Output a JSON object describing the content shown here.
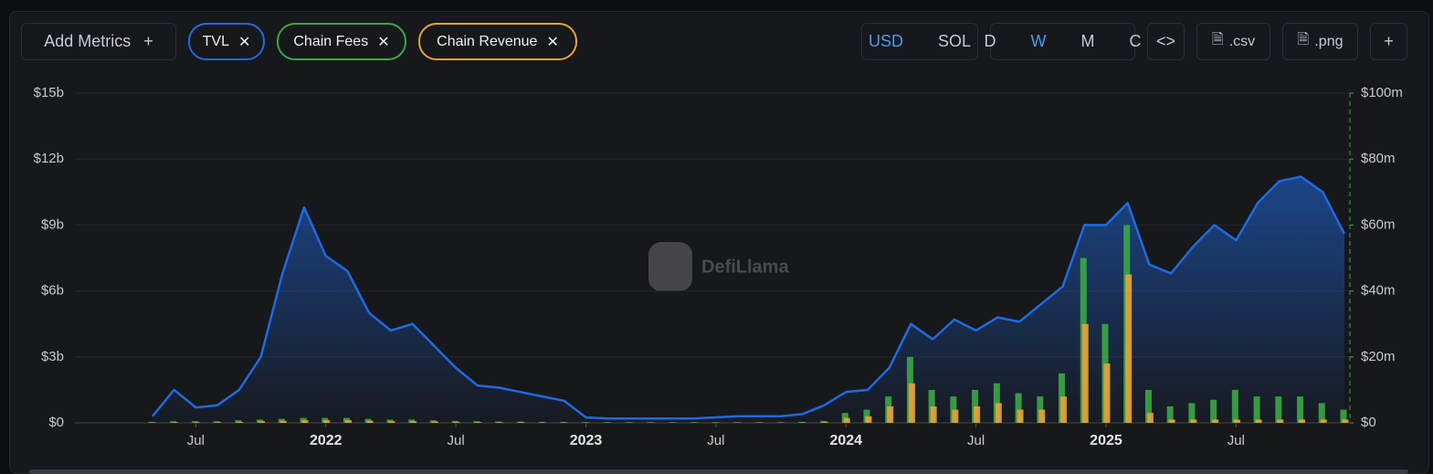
{
  "toolbar": {
    "add_metrics": "Add Metrics",
    "currencies": [
      "USD",
      "SOL"
    ],
    "selected_currency": "USD",
    "intervals": [
      "D",
      "W",
      "M",
      "C"
    ],
    "selected_interval": "W",
    "exports": [
      ".csv",
      ".png"
    ]
  },
  "chart_data": {
    "type": "line",
    "watermark": "DefiLlama",
    "x": [
      "2021-05",
      "2021-06",
      "2021-07",
      "2021-08",
      "2021-09",
      "2021-10",
      "2021-11",
      "2021-12",
      "2022-01",
      "2022-02",
      "2022-03",
      "2022-04",
      "2022-05",
      "2022-06",
      "2022-07",
      "2022-08",
      "2022-09",
      "2022-10",
      "2022-11",
      "2022-12",
      "2023-01",
      "2023-02",
      "2023-03",
      "2023-04",
      "2023-05",
      "2023-06",
      "2023-07",
      "2023-08",
      "2023-09",
      "2023-10",
      "2023-11",
      "2023-12",
      "2024-01",
      "2024-02",
      "2024-03",
      "2024-04",
      "2024-05",
      "2024-06",
      "2024-07",
      "2024-08",
      "2024-09",
      "2024-10",
      "2024-11",
      "2024-12",
      "2025-01",
      "2025-02",
      "2025-03",
      "2025-04",
      "2025-05",
      "2025-06",
      "2025-07",
      "2025-08",
      "2025-09",
      "2025-10",
      "2025-11",
      "2025-12"
    ],
    "xlim": [
      "2021-01",
      "2025-12"
    ],
    "xticks": [
      {
        "value": "2021-07",
        "label": "Jul"
      },
      {
        "value": "2022-01",
        "label": "2022"
      },
      {
        "value": "2022-07",
        "label": "Jul"
      },
      {
        "value": "2023-01",
        "label": "2023"
      },
      {
        "value": "2023-07",
        "label": "Jul"
      },
      {
        "value": "2024-01",
        "label": "2024"
      },
      {
        "value": "2024-07",
        "label": "Jul"
      },
      {
        "value": "2025-01",
        "label": "2025"
      },
      {
        "value": "2025-07",
        "label": "Jul"
      }
    ],
    "ylim": [
      0,
      15
    ],
    "yticks": [
      {
        "value": 0,
        "label": "$0"
      },
      {
        "value": 3,
        "label": "$3b"
      },
      {
        "value": 6,
        "label": "$6b"
      },
      {
        "value": 9,
        "label": "$9b"
      },
      {
        "value": 12,
        "label": "$12b"
      },
      {
        "value": 15,
        "label": "$15b"
      }
    ],
    "y2lim": [
      0,
      100
    ],
    "y2ticks": [
      {
        "value": 0,
        "label": "$0"
      },
      {
        "value": 20,
        "label": "$20m"
      },
      {
        "value": 40,
        "label": "$40m"
      },
      {
        "value": 60,
        "label": "$60m"
      },
      {
        "value": 80,
        "label": "$80m"
      },
      {
        "value": 100,
        "label": "$100m"
      }
    ],
    "series": [
      {
        "name": "TVL",
        "type": "line",
        "color": "#1f6ae0",
        "values": [
          0.3,
          1.5,
          0.7,
          0.8,
          1.5,
          3.0,
          6.8,
          9.8,
          7.6,
          6.9,
          5.0,
          4.2,
          4.5,
          3.5,
          2.5,
          1.7,
          1.6,
          1.4,
          1.2,
          1.0,
          0.25,
          0.2,
          0.2,
          0.2,
          0.2,
          0.2,
          0.25,
          0.3,
          0.3,
          0.3,
          0.4,
          0.8,
          1.4,
          1.5,
          2.5,
          4.5,
          3.8,
          4.7,
          4.2,
          4.8,
          4.6,
          5.4,
          6.2,
          9.0,
          9.0,
          10.0,
          7.2,
          6.8,
          8.0,
          9.0,
          8.3,
          10.0,
          11.0,
          11.2,
          10.5,
          8.6
        ]
      },
      {
        "name": "Chain Fees",
        "type": "bar",
        "axis": "y2",
        "color": "#3aa845",
        "values": [
          0.3,
          0.5,
          0.5,
          0.5,
          0.8,
          1,
          1.2,
          1.5,
          1.5,
          1.5,
          1.2,
          1,
          1,
          0.8,
          0.6,
          0.5,
          0.4,
          0.4,
          0.3,
          0.3,
          0.2,
          0.2,
          0.2,
          0.2,
          0.2,
          0.2,
          0.2,
          0.2,
          0.2,
          0.2,
          0.3,
          0.6,
          3,
          4,
          8,
          20,
          10,
          8,
          10,
          12,
          9,
          8,
          15,
          50,
          30,
          60,
          10,
          5,
          6,
          7,
          10,
          8,
          8,
          8,
          6,
          4
        ]
      },
      {
        "name": "Chain Revenue",
        "type": "bar",
        "axis": "y2",
        "color": "#e8a23a",
        "values": [
          0.1,
          0.2,
          0.2,
          0.2,
          0.3,
          0.5,
          0.6,
          0.8,
          0.8,
          0.8,
          0.6,
          0.5,
          0.5,
          0.4,
          0.3,
          0.2,
          0.2,
          0.2,
          0.1,
          0.1,
          0.1,
          0.1,
          0.1,
          0.1,
          0.1,
          0.1,
          0.1,
          0.1,
          0.1,
          0.1,
          0.1,
          0.3,
          1.5,
          2,
          5,
          12,
          5,
          4,
          5,
          6,
          4,
          4,
          8,
          30,
          18,
          45,
          3,
          1,
          1,
          1,
          1,
          1,
          1,
          1,
          1,
          1
        ]
      }
    ],
    "grid": true
  }
}
